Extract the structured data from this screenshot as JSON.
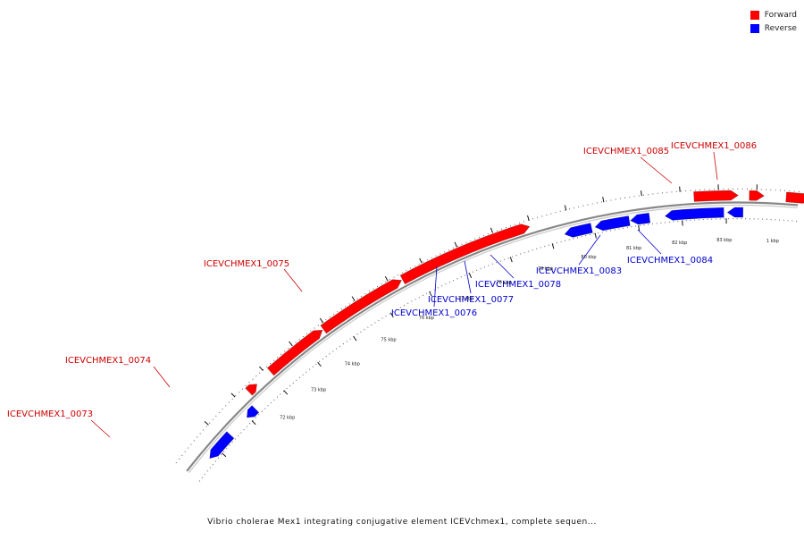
{
  "legend": {
    "items": [
      {
        "label": "Forward",
        "color": "#ff0000"
      },
      {
        "label": "Reverse",
        "color": "#0000ff"
      }
    ]
  },
  "caption": "Vibrio cholerae Mex1 integrating conjugative element ICEVchmex1, complete sequen...",
  "map": {
    "colors": {
      "forward": "#ff0000",
      "reverse": "#0000ff",
      "label_forward": "#cc0000",
      "label_reverse": "#0000cc",
      "backbone": "#888888"
    },
    "tick_labels": [
      "72 kbp",
      "73 kbp",
      "74 kbp",
      "75 kbp",
      "76 kbp",
      "77 kbp",
      "78 kbp",
      "79 kbp",
      "80 kbp",
      "81 kbp",
      "82 kbp",
      "83 kbp",
      "1 kbp"
    ],
    "features": [
      {
        "name": "ICEVCHMEX1_0073",
        "strand": "forward"
      },
      {
        "name": "ICEVCHMEX1_0074",
        "strand": "forward"
      },
      {
        "name": "ICEVCHMEX1_0075",
        "strand": "forward"
      },
      {
        "name": "ICEVCHMEX1_0076",
        "strand": "reverse"
      },
      {
        "name": "ICEVCHMEX1_0077",
        "strand": "reverse"
      },
      {
        "name": "ICEVCHMEX1_0078",
        "strand": "reverse"
      },
      {
        "name": "ICEVCHMEX1_0083",
        "strand": "reverse"
      },
      {
        "name": "ICEVCHMEX1_0084",
        "strand": "reverse"
      },
      {
        "name": "ICEVCHMEX1_0085",
        "strand": "forward"
      },
      {
        "name": "ICEVCHMEX1_0086",
        "strand": "forward"
      }
    ]
  }
}
